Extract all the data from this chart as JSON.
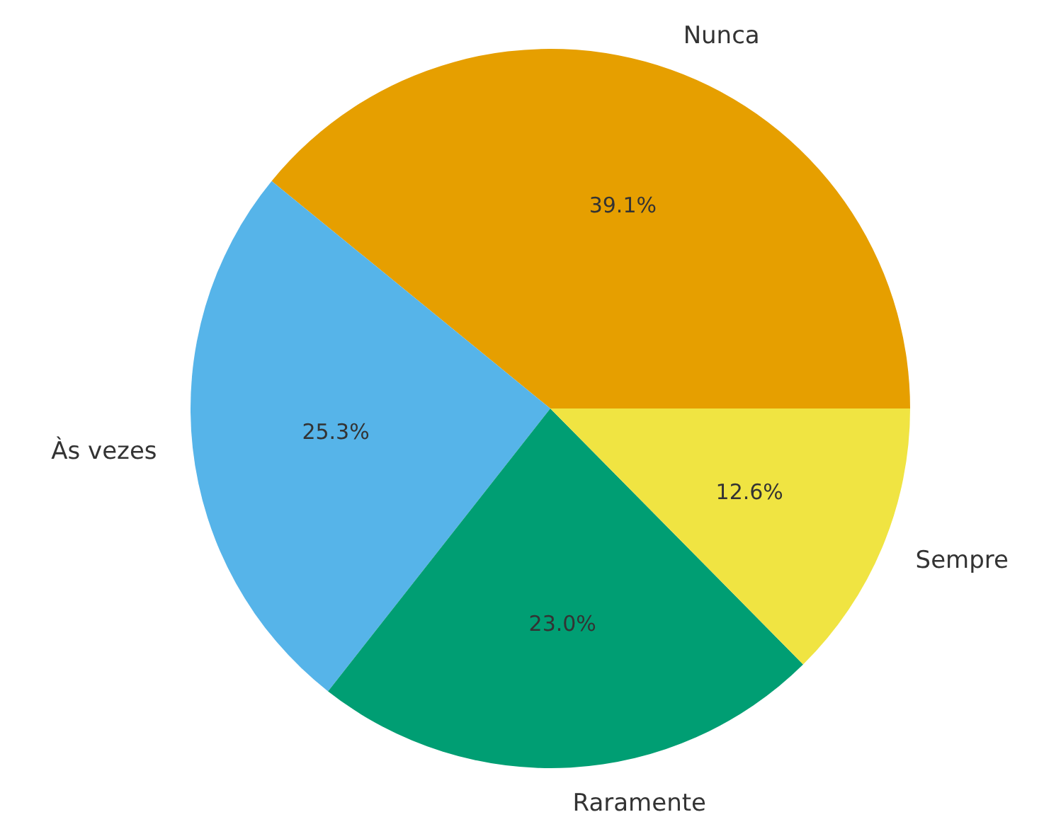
{
  "chart_data": {
    "type": "pie",
    "categories": [
      "Nunca",
      "Às vezes",
      "Raramente",
      "Sempre"
    ],
    "values": [
      39.1,
      25.3,
      23.0,
      12.6
    ],
    "value_labels": [
      "39.1%",
      "25.3%",
      "23.0%",
      "12.6%"
    ],
    "colors": [
      "#e69f00",
      "#56b4e9",
      "#009e73",
      "#f0e442"
    ]
  }
}
